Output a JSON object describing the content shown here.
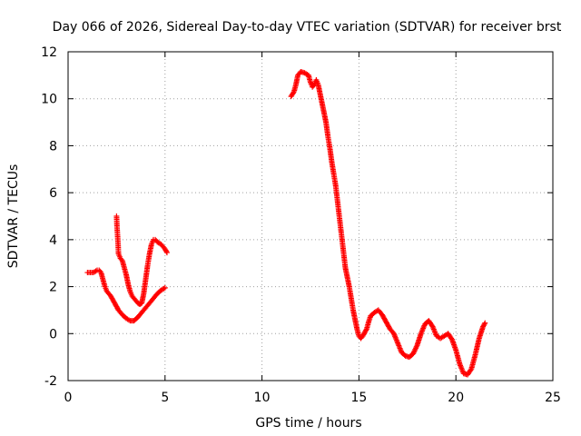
{
  "chart_data": {
    "type": "scatter",
    "title": "Day 066 of 2026, Sidereal Day-to-day VTEC variation (SDTVAR) for receiver brst",
    "xlabel": "GPS time / hours",
    "ylabel": "SDTVAR / TECUs",
    "xlim": [
      0,
      25
    ],
    "ylim": [
      -2,
      12
    ],
    "x_ticks": [
      0,
      5,
      10,
      15,
      20,
      25
    ],
    "y_ticks": [
      -2,
      0,
      2,
      4,
      6,
      8,
      10,
      12
    ],
    "x_tick_labels": [
      "0",
      "5",
      "10",
      "15",
      "20",
      "25"
    ],
    "y_tick_labels": [
      "-2",
      "0",
      "2",
      "4",
      "6",
      "8",
      "10",
      "12"
    ],
    "grid": true,
    "marker": "plus",
    "series": [
      {
        "color": "#ff0000",
        "segments": [
          [
            [
              1.0,
              2.6
            ],
            [
              1.3,
              2.6
            ],
            [
              1.5,
              2.7
            ],
            [
              1.6,
              2.7
            ],
            [
              1.7,
              2.6
            ],
            [
              1.8,
              2.3
            ],
            [
              1.9,
              2.0
            ],
            [
              2.0,
              1.8
            ],
            [
              2.2,
              1.6
            ],
            [
              2.4,
              1.3
            ],
            [
              2.6,
              1.0
            ],
            [
              2.8,
              0.8
            ],
            [
              3.0,
              0.65
            ],
            [
              3.2,
              0.55
            ],
            [
              3.4,
              0.55
            ],
            [
              3.6,
              0.7
            ],
            [
              3.8,
              0.9
            ],
            [
              4.0,
              1.1
            ],
            [
              4.2,
              1.3
            ],
            [
              4.4,
              1.5
            ],
            [
              4.6,
              1.7
            ],
            [
              4.8,
              1.85
            ],
            [
              5.0,
              1.95
            ]
          ],
          [
            [
              2.5,
              5.0
            ],
            [
              2.52,
              4.6
            ],
            [
              2.55,
              4.2
            ],
            [
              2.58,
              3.8
            ],
            [
              2.6,
              3.4
            ],
            [
              2.7,
              3.2
            ],
            [
              2.8,
              3.1
            ],
            [
              2.9,
              2.8
            ],
            [
              3.0,
              2.5
            ],
            [
              3.1,
              2.1
            ],
            [
              3.2,
              1.8
            ],
            [
              3.3,
              1.6
            ],
            [
              3.45,
              1.45
            ],
            [
              3.6,
              1.3
            ],
            [
              3.7,
              1.25
            ],
            [
              3.8,
              1.3
            ],
            [
              3.9,
              1.7
            ],
            [
              4.0,
              2.3
            ],
            [
              4.1,
              2.9
            ],
            [
              4.2,
              3.4
            ],
            [
              4.3,
              3.8
            ],
            [
              4.4,
              4.0
            ],
            [
              4.5,
              4.0
            ],
            [
              4.6,
              3.9
            ],
            [
              4.8,
              3.8
            ],
            [
              5.0,
              3.6
            ],
            [
              5.1,
              3.45
            ]
          ],
          [
            [
              11.5,
              10.1
            ],
            [
              11.65,
              10.3
            ],
            [
              11.75,
              10.6
            ],
            [
              11.85,
              11.0
            ],
            [
              12.0,
              11.15
            ],
            [
              12.2,
              11.1
            ],
            [
              12.4,
              11.0
            ],
            [
              12.5,
              10.7
            ],
            [
              12.6,
              10.5
            ],
            [
              12.7,
              10.6
            ],
            [
              12.8,
              10.8
            ],
            [
              12.9,
              10.6
            ],
            [
              13.0,
              10.2
            ],
            [
              13.1,
              9.8
            ],
            [
              13.2,
              9.4
            ],
            [
              13.3,
              9.0
            ],
            [
              13.4,
              8.4
            ],
            [
              13.5,
              7.9
            ],
            [
              13.6,
              7.3
            ],
            [
              13.7,
              6.8
            ],
            [
              13.8,
              6.3
            ],
            [
              13.9,
              5.6
            ],
            [
              14.0,
              4.9
            ],
            [
              14.1,
              4.2
            ],
            [
              14.2,
              3.5
            ],
            [
              14.3,
              2.8
            ],
            [
              14.4,
              2.4
            ],
            [
              14.5,
              2.0
            ],
            [
              14.6,
              1.5
            ],
            [
              14.7,
              1.0
            ],
            [
              14.8,
              0.6
            ],
            [
              14.9,
              0.2
            ],
            [
              15.0,
              -0.1
            ],
            [
              15.1,
              -0.2
            ],
            [
              15.2,
              -0.1
            ],
            [
              15.3,
              0.05
            ],
            [
              15.4,
              0.2
            ],
            [
              15.5,
              0.5
            ],
            [
              15.6,
              0.75
            ],
            [
              15.8,
              0.9
            ],
            [
              16.0,
              1.0
            ],
            [
              16.2,
              0.8
            ],
            [
              16.4,
              0.5
            ],
            [
              16.6,
              0.2
            ],
            [
              16.8,
              0.0
            ],
            [
              17.0,
              -0.4
            ],
            [
              17.2,
              -0.8
            ],
            [
              17.4,
              -0.95
            ],
            [
              17.6,
              -1.0
            ],
            [
              17.8,
              -0.85
            ],
            [
              18.0,
              -0.5
            ],
            [
              18.2,
              0.0
            ],
            [
              18.4,
              0.4
            ],
            [
              18.6,
              0.55
            ],
            [
              18.8,
              0.3
            ],
            [
              19.0,
              -0.1
            ],
            [
              19.2,
              -0.2
            ],
            [
              19.4,
              -0.1
            ],
            [
              19.6,
              0.0
            ],
            [
              19.8,
              -0.25
            ],
            [
              20.0,
              -0.7
            ],
            [
              20.2,
              -1.3
            ],
            [
              20.4,
              -1.7
            ],
            [
              20.6,
              -1.75
            ],
            [
              20.8,
              -1.5
            ],
            [
              21.0,
              -0.9
            ],
            [
              21.2,
              -0.2
            ],
            [
              21.4,
              0.3
            ],
            [
              21.5,
              0.45
            ]
          ]
        ]
      }
    ]
  }
}
